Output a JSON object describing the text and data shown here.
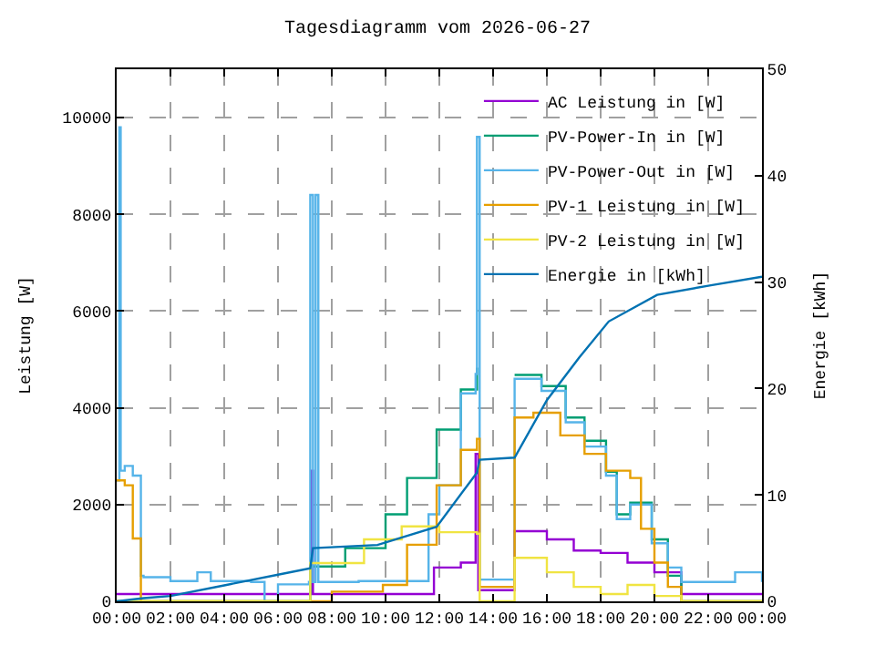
{
  "chart_data": {
    "type": "step",
    "title": "Tagesdiagramm vom 2026-06-27",
    "ylabel": "Leistung [W]",
    "y2label": "Energie [kWh]",
    "xlim": [
      0,
      24
    ],
    "xticks": [
      {
        "value": 0,
        "label": "00:00"
      },
      {
        "value": 2,
        "label": "02:00"
      },
      {
        "value": 4,
        "label": "04:00"
      },
      {
        "value": 6,
        "label": "06:00"
      },
      {
        "value": 8,
        "label": "08:00"
      },
      {
        "value": 10,
        "label": "10:00"
      },
      {
        "value": 12,
        "label": "12:00"
      },
      {
        "value": 14,
        "label": "14:00"
      },
      {
        "value": 16,
        "label": "16:00"
      },
      {
        "value": 18,
        "label": "18:00"
      },
      {
        "value": 20,
        "label": "20:00"
      },
      {
        "value": 22,
        "label": "22:00"
      },
      {
        "value": 24,
        "label": "00:00"
      }
    ],
    "ylim": [
      0,
      11000
    ],
    "yticks": [
      0,
      2000,
      4000,
      6000,
      8000,
      10000
    ],
    "y2lim": [
      0,
      50
    ],
    "y2ticks": [
      0,
      10,
      20,
      30,
      40,
      50
    ],
    "grid": true,
    "legend": "top right",
    "series": [
      {
        "name": "AC Leistung in [W]",
        "color": "#9400d3",
        "x": [
          0,
          0.9,
          7.2,
          7.25,
          7.3,
          11.8,
          12.8,
          13.35,
          13.45,
          14.8,
          16,
          17,
          18,
          19,
          20,
          21,
          24
        ],
        "values": [
          150,
          150,
          150,
          2700,
          150,
          700,
          800,
          3050,
          230,
          1450,
          1280,
          1050,
          1000,
          800,
          600,
          150,
          150
        ]
      },
      {
        "name": "PV-Power-In in [W]",
        "color": "#009e73",
        "x": [
          0,
          6,
          7.2,
          8.5,
          10,
          10.8,
          11.9,
          12.8,
          13.4,
          13.5,
          14.8,
          15.8,
          16.7,
          17.4,
          18.2,
          18.6,
          19.1,
          19.9,
          20.5,
          21,
          24
        ],
        "values": [
          0,
          0,
          720,
          1100,
          1800,
          2550,
          3550,
          4380,
          4830,
          null,
          4680,
          4450,
          3800,
          3320,
          2680,
          1800,
          2040,
          1280,
          530,
          0,
          0
        ]
      },
      {
        "name": "PV-Power-Out in [W]",
        "color": "#56b4e9",
        "x": [
          0,
          0.1,
          0.15,
          0.3,
          0.6,
          0.9,
          1,
          2,
          3,
          3.5,
          4,
          5,
          5.5,
          6,
          7.15,
          7.2,
          7.3,
          7.4,
          7.5,
          9,
          11.5,
          11.6,
          12,
          12.8,
          13.35,
          13.4,
          13.5,
          14.8,
          15.8,
          16.7,
          17.4,
          18.2,
          18.6,
          19.1,
          19.9,
          20.5,
          21,
          22,
          23,
          24
        ],
        "values": [
          2500,
          9800,
          2700,
          2800,
          2600,
          530,
          500,
          420,
          600,
          420,
          420,
          400,
          0,
          350,
          400,
          8400,
          400,
          8400,
          400,
          420,
          420,
          1800,
          2400,
          4300,
          4700,
          9600,
          450,
          4600,
          4350,
          3700,
          3200,
          2600,
          1700,
          2000,
          1200,
          700,
          400,
          400,
          600,
          400
        ]
      },
      {
        "name": "PV-1 Leistung in [W]",
        "color": "#e69f00",
        "x": [
          0,
          0.3,
          0.6,
          0.9,
          6,
          8,
          9.9,
          10.8,
          11.9,
          12.8,
          13.4,
          13.5,
          14.8,
          15.5,
          16.5,
          17.4,
          18.2,
          19.1,
          19.5,
          20,
          20.5,
          21,
          24
        ],
        "values": [
          2500,
          2400,
          1300,
          0,
          0,
          200,
          340,
          1170,
          2400,
          3130,
          3360,
          300,
          3800,
          3900,
          3430,
          3050,
          2700,
          2550,
          1500,
          800,
          300,
          0,
          0
        ]
      },
      {
        "name": "PV-2 Leistung in [W]",
        "color": "#f0e442",
        "x": [
          0,
          6,
          7.2,
          9.2,
          10.6,
          12,
          13.4,
          13.5,
          14.8,
          16,
          17,
          18,
          19,
          20,
          21,
          24
        ],
        "values": [
          0,
          0,
          790,
          1280,
          1550,
          1430,
          1400,
          0,
          900,
          600,
          300,
          150,
          340,
          110,
          0,
          0
        ]
      },
      {
        "name": "Energie in [kWh]",
        "color": "#0072b2",
        "type": "line",
        "axis": "y2",
        "x": [
          0,
          1,
          2,
          4,
          6,
          7.2,
          7.3,
          9.7,
          11.9,
          13.4,
          13.5,
          14.8,
          16,
          17.2,
          18.3,
          20.1,
          22.1,
          24
        ],
        "values": [
          0,
          0.3,
          0.5,
          1.5,
          2.5,
          3.1,
          5,
          5.3,
          7,
          12.1,
          13.3,
          13.5,
          18.9,
          22.9,
          26.3,
          28.8,
          29.7,
          30.5
        ]
      }
    ]
  }
}
